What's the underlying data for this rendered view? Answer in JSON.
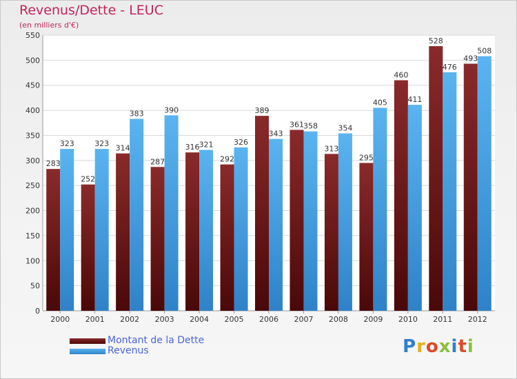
{
  "chart_data": {
    "type": "bar",
    "title": "Revenus/Dette - LEUC",
    "subtitle": "(en milliers d'€)",
    "categories": [
      "2000",
      "2001",
      "2002",
      "2003",
      "2004",
      "2005",
      "2006",
      "2007",
      "2008",
      "2009",
      "2010",
      "2011",
      "2012"
    ],
    "series": [
      {
        "name": "Montant de la Dette",
        "color": "#7a1a1a",
        "values": [
          283,
          252,
          314,
          287,
          316,
          292,
          389,
          361,
          313,
          295,
          460,
          528,
          493
        ]
      },
      {
        "name": "Revenus",
        "color": "#4aa3e6",
        "values": [
          323,
          323,
          383,
          390,
          321,
          326,
          343,
          358,
          354,
          405,
          411,
          476,
          508
        ]
      }
    ],
    "ylim": [
      0,
      550
    ],
    "yticks": [
      0,
      50,
      100,
      150,
      200,
      250,
      300,
      350,
      400,
      450,
      500,
      550
    ],
    "grid": true,
    "legend": "bottom-left"
  },
  "logo": {
    "text": "Proxiti",
    "colors": [
      "#2f7fd0",
      "#e8b020",
      "#e0482a",
      "#8bc03a",
      "#2f7fd0",
      "#e0482a",
      "#8bc03a"
    ]
  }
}
